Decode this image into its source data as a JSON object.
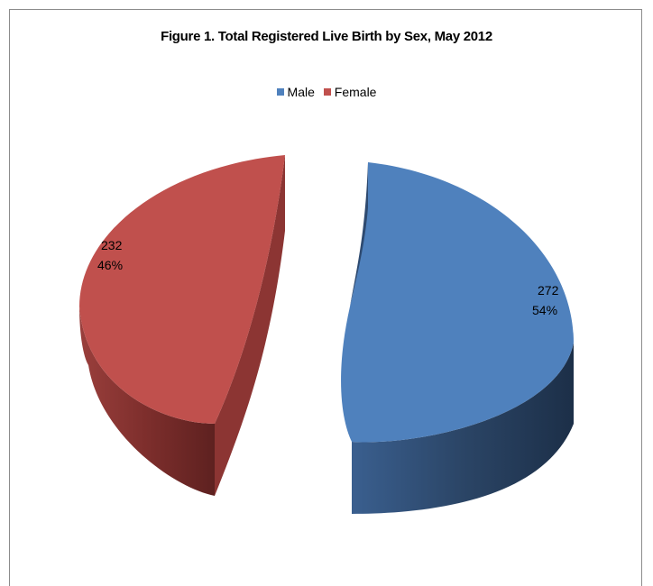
{
  "chart_data": {
    "type": "pie",
    "title": "Figure 1. Total Registered Live Birth by Sex, May 2012",
    "legend_position": "top",
    "slices": [
      {
        "name": "Male",
        "value": 272,
        "percent": "54%",
        "color": "#4f81bd",
        "side_color": "#2e4a70",
        "exploded": true
      },
      {
        "name": "Female",
        "value": 232,
        "percent": "46%",
        "color": "#c0504d",
        "side_color": "#7d2e2c",
        "exploded": true
      }
    ]
  }
}
